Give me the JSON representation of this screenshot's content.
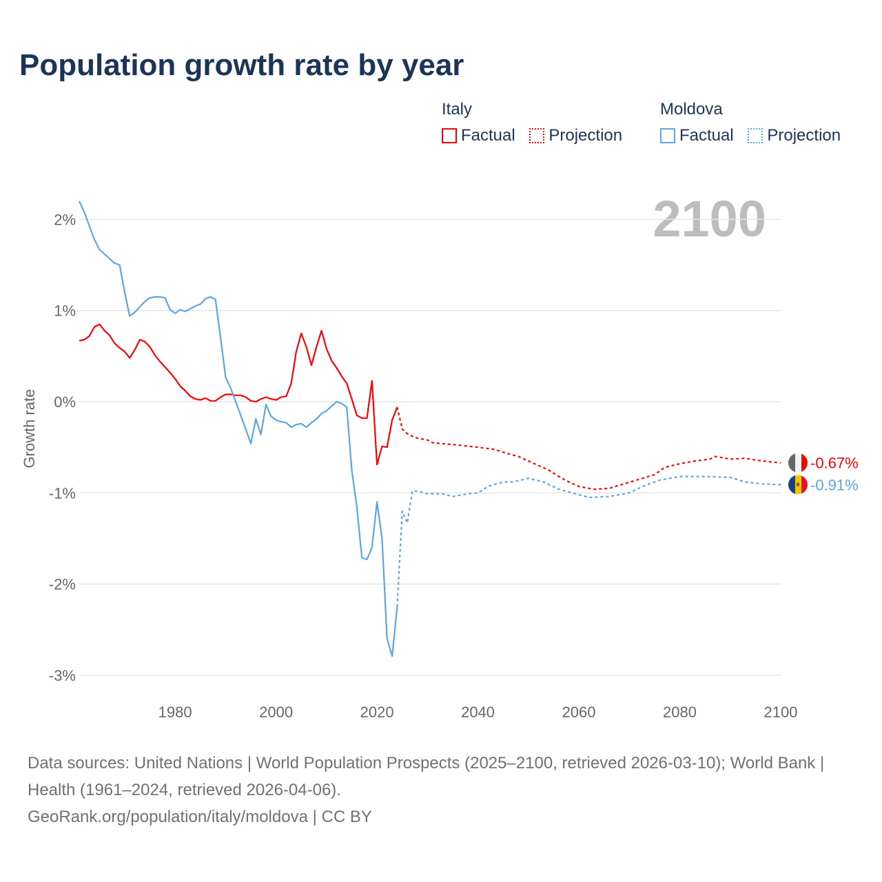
{
  "title": "Population growth rate by year",
  "legend": {
    "groups": [
      {
        "name": "Italy",
        "color": "#ff0000",
        "items": [
          "Factual",
          "Projection"
        ]
      },
      {
        "name": "Moldova",
        "color": "#5aa5e8",
        "items": [
          "Factual",
          "Projection"
        ]
      }
    ]
  },
  "year_overlay": "2100",
  "footer": {
    "line1": "Data sources: United Nations | World Population Prospects (2025–2100, retrieved 2026-03-10); World Bank | Health (1961–2024, retrieved 2026-04-06).",
    "line2": "GeoRank.org/population/italy/moldova | CC BY"
  },
  "chart_data": {
    "type": "line",
    "title": "Population growth rate by year",
    "xlabel": "",
    "ylabel": "Growth rate",
    "xlim": [
      1961,
      2100
    ],
    "ylim": [
      -3.3,
      2.3
    ],
    "x_ticks": [
      1980,
      2000,
      2020,
      2040,
      2060,
      2080,
      2100
    ],
    "y_ticks": [
      2,
      1,
      0,
      -1,
      -2,
      -3
    ],
    "y_tick_labels": [
      "2%",
      "1%",
      "0%",
      "-1%",
      "-2%",
      "-3%"
    ],
    "grid": "horizontal",
    "legend_position": "top-right",
    "series": [
      {
        "name": "Italy Factual",
        "country": "Italy",
        "style": "solid",
        "color": "#ff0000",
        "x": [
          1961,
          1962,
          1963,
          1964,
          1965,
          1966,
          1967,
          1968,
          1969,
          1970,
          1971,
          1972,
          1973,
          1974,
          1975,
          1976,
          1977,
          1978,
          1979,
          1980,
          1981,
          1982,
          1983,
          1984,
          1985,
          1986,
          1987,
          1988,
          1989,
          1990,
          1991,
          1992,
          1993,
          1994,
          1995,
          1996,
          1997,
          1998,
          1999,
          2000,
          2001,
          2002,
          2003,
          2004,
          2005,
          2006,
          2007,
          2008,
          2009,
          2010,
          2011,
          2012,
          2013,
          2014,
          2015,
          2016,
          2017,
          2018,
          2019,
          2020,
          2021,
          2022,
          2023,
          2024
        ],
        "y": [
          0.67,
          0.68,
          0.72,
          0.82,
          0.85,
          0.78,
          0.73,
          0.64,
          0.59,
          0.55,
          0.48,
          0.57,
          0.68,
          0.66,
          0.6,
          0.51,
          0.44,
          0.38,
          0.32,
          0.25,
          0.17,
          0.12,
          0.06,
          0.03,
          0.02,
          0.04,
          0.01,
          0.01,
          0.05,
          0.08,
          0.08,
          0.07,
          0.07,
          0.05,
          0.01,
          0.0,
          0.03,
          0.05,
          0.03,
          0.02,
          0.05,
          0.06,
          0.2,
          0.55,
          0.75,
          0.6,
          0.4,
          0.6,
          0.78,
          0.58,
          0.45,
          0.37,
          0.28,
          0.2,
          0.03,
          -0.15,
          -0.18,
          -0.18,
          0.23,
          -0.69,
          -0.49,
          -0.5,
          -0.2,
          -0.06
        ]
      },
      {
        "name": "Italy Projection",
        "country": "Italy",
        "style": "dotted",
        "color": "#ff0000",
        "x": [
          2024,
          2025,
          2026,
          2027,
          2028,
          2030,
          2031,
          2035,
          2040,
          2043,
          2046,
          2048,
          2050,
          2052,
          2054,
          2056,
          2058,
          2060,
          2063,
          2066,
          2069,
          2072,
          2075,
          2077,
          2080,
          2083,
          2086,
          2087,
          2090,
          2093,
          2095,
          2098,
          2100
        ],
        "y": [
          -0.06,
          -0.3,
          -0.35,
          -0.38,
          -0.4,
          -0.42,
          -0.45,
          -0.47,
          -0.5,
          -0.52,
          -0.57,
          -0.6,
          -0.65,
          -0.7,
          -0.75,
          -0.82,
          -0.88,
          -0.93,
          -0.96,
          -0.95,
          -0.9,
          -0.85,
          -0.8,
          -0.72,
          -0.68,
          -0.65,
          -0.63,
          -0.6,
          -0.63,
          -0.62,
          -0.64,
          -0.66,
          -0.67
        ]
      },
      {
        "name": "Moldova Factual",
        "country": "Moldova",
        "style": "solid",
        "color": "#5aa5e8",
        "x": [
          1961,
          1962,
          1963,
          1964,
          1965,
          1966,
          1967,
          1968,
          1969,
          1970,
          1971,
          1972,
          1973,
          1974,
          1975,
          1976,
          1977,
          1978,
          1979,
          1980,
          1981,
          1982,
          1983,
          1984,
          1985,
          1986,
          1987,
          1988,
          1989,
          1990,
          1991,
          1992,
          1993,
          1994,
          1995,
          1996,
          1997,
          1998,
          1999,
          2000,
          2001,
          2002,
          2003,
          2004,
          2005,
          2006,
          2007,
          2008,
          2009,
          2010,
          2011,
          2012,
          2013,
          2014,
          2015,
          2016,
          2017,
          2018,
          2019,
          2020,
          2021,
          2022,
          2023,
          2024
        ],
        "y": [
          2.2,
          2.08,
          1.93,
          1.78,
          1.67,
          1.62,
          1.57,
          1.52,
          1.5,
          1.2,
          0.94,
          0.98,
          1.04,
          1.1,
          1.14,
          1.15,
          1.15,
          1.14,
          1.01,
          0.97,
          1.01,
          0.99,
          1.02,
          1.05,
          1.07,
          1.13,
          1.15,
          1.12,
          0.7,
          0.27,
          0.15,
          0.0,
          -0.15,
          -0.3,
          -0.46,
          -0.19,
          -0.36,
          -0.03,
          -0.16,
          -0.2,
          -0.22,
          -0.23,
          -0.28,
          -0.25,
          -0.24,
          -0.28,
          -0.23,
          -0.19,
          -0.13,
          -0.1,
          -0.05,
          0.0,
          -0.02,
          -0.06,
          -0.75,
          -1.15,
          -1.71,
          -1.73,
          -1.6,
          -1.1,
          -1.5,
          -2.6,
          -2.79,
          -2.25
        ]
      },
      {
        "name": "Moldova Projection",
        "country": "Moldova",
        "style": "dotted",
        "color": "#5aa5e8",
        "x": [
          2024,
          2025,
          2026,
          2027,
          2028,
          2030,
          2033,
          2035,
          2038,
          2040,
          2042,
          2045,
          2047,
          2050,
          2053,
          2056,
          2060,
          2062,
          2066,
          2070,
          2073,
          2076,
          2080,
          2085,
          2090,
          2093,
          2096,
          2100
        ],
        "y": [
          -2.25,
          -1.2,
          -1.33,
          -0.98,
          -0.98,
          -1.01,
          -1.01,
          -1.04,
          -1.01,
          -1.0,
          -0.93,
          -0.88,
          -0.88,
          -0.84,
          -0.88,
          -0.96,
          -1.02,
          -1.05,
          -1.04,
          -1.0,
          -0.92,
          -0.86,
          -0.82,
          -0.82,
          -0.83,
          -0.88,
          -0.9,
          -0.91
        ]
      }
    ],
    "end_labels": [
      {
        "country": "Italy",
        "text": "-0.67%",
        "value": -0.67,
        "color": "#ff0000"
      },
      {
        "country": "Moldova",
        "text": "-0.91%",
        "value": -0.91,
        "color": "#5aa5e8"
      }
    ]
  }
}
